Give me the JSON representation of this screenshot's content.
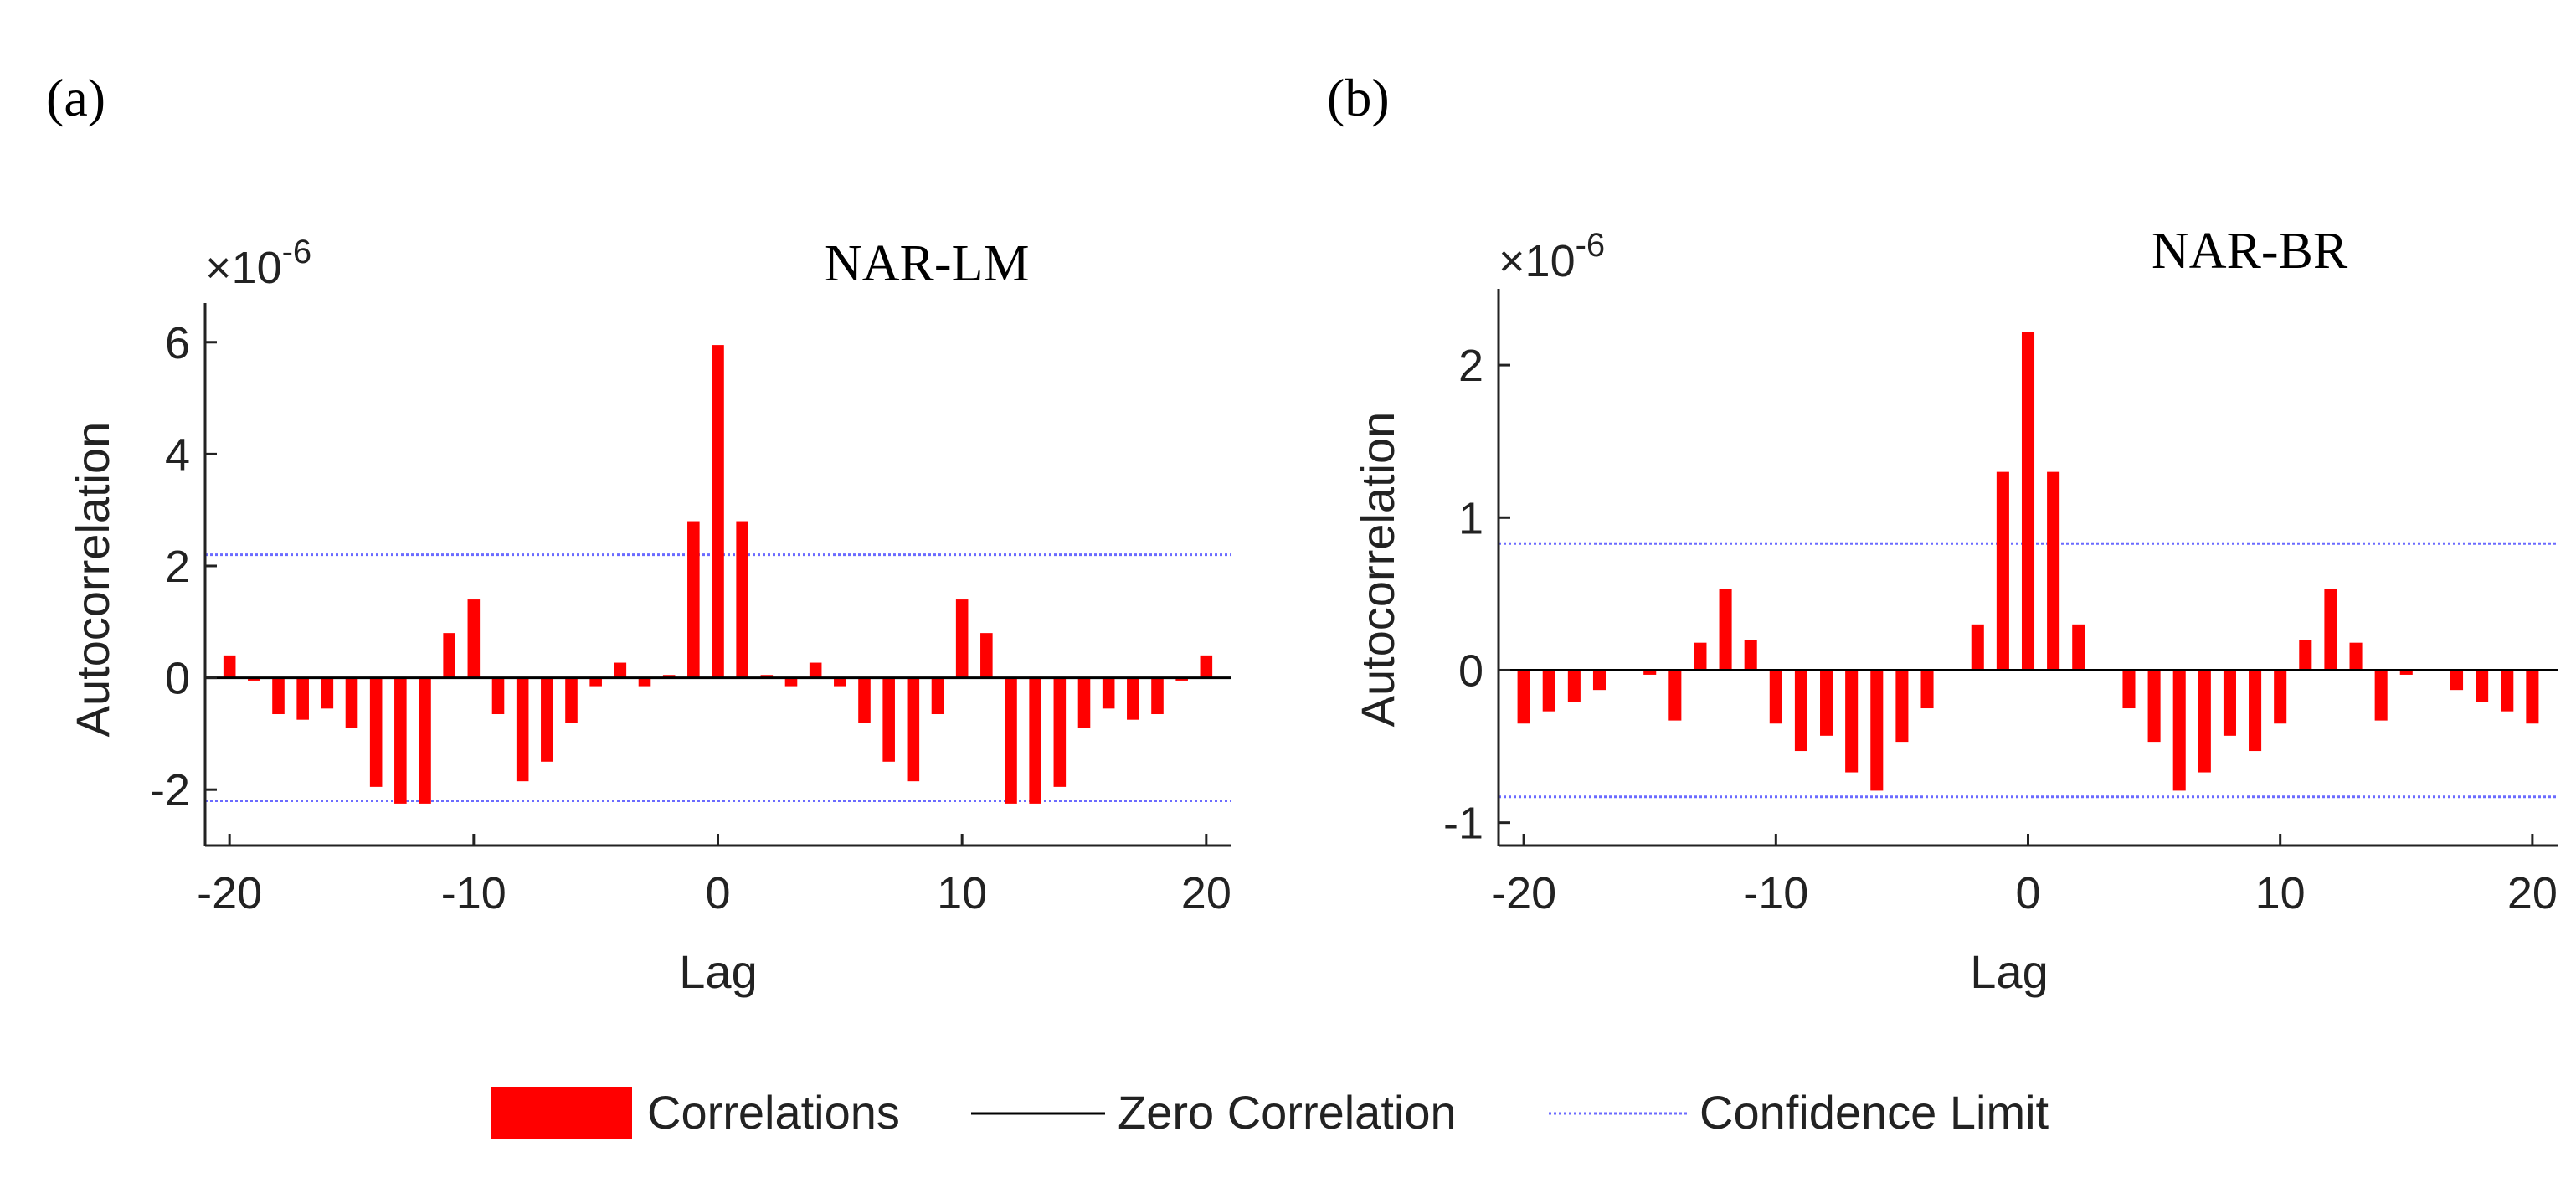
{
  "figure": {
    "legend": {
      "items": [
        {
          "label": "Correlations",
          "kind": "bar",
          "color": "#ff0000"
        },
        {
          "label": "Zero Correlation",
          "kind": "line",
          "color": "#000000"
        },
        {
          "label": "Confidence Limit",
          "kind": "dotted-line",
          "color": "#6b6bff"
        }
      ]
    }
  },
  "chart_data": [
    {
      "type": "bar",
      "panel": "(a)",
      "title": "NAR-LM",
      "xlabel": "Lag",
      "ylabel": "Autocorrelation",
      "exponent_base": "×10",
      "exponent": "-6",
      "xlim": [
        -21,
        21
      ],
      "ylim": [
        -3,
        6.7
      ],
      "xticks": [
        -20,
        -10,
        0,
        10,
        20
      ],
      "yticks": [
        -2,
        0,
        2,
        4,
        6
      ],
      "confidence_limit": 2.2,
      "x": [
        -20,
        -19,
        -18,
        -17,
        -16,
        -15,
        -14,
        -13,
        -12,
        -11,
        -10,
        -9,
        -8,
        -7,
        -6,
        -5,
        -4,
        -3,
        -2,
        -1,
        0,
        1,
        2,
        3,
        4,
        5,
        6,
        7,
        8,
        9,
        10,
        11,
        12,
        13,
        14,
        15,
        16,
        17,
        18,
        19,
        20
      ],
      "values": [
        0.4,
        -0.05,
        -0.65,
        -0.75,
        -0.55,
        -0.9,
        -1.95,
        -2.25,
        -2.25,
        0.8,
        1.4,
        -0.65,
        -1.85,
        -1.5,
        -0.8,
        -0.15,
        0.27,
        -0.15,
        0.05,
        2.8,
        5.95,
        2.8,
        0.05,
        -0.15,
        0.27,
        -0.15,
        -0.8,
        -1.5,
        -1.85,
        -0.65,
        1.4,
        0.8,
        -2.25,
        -2.25,
        -1.95,
        -0.9,
        -0.55,
        -0.75,
        -0.65,
        -0.05,
        0.4
      ]
    },
    {
      "type": "bar",
      "panel": "(b)",
      "title": "NAR-BR",
      "xlabel": "Lag",
      "ylabel": "Autocorrelation",
      "exponent_base": "×10",
      "exponent": "-6",
      "xlim": [
        -21,
        21
      ],
      "ylim": [
        -1.15,
        2.5
      ],
      "xticks": [
        -20,
        -10,
        0,
        10,
        20
      ],
      "yticks": [
        -1,
        0,
        1,
        2
      ],
      "confidence_limit": 0.83,
      "x": [
        -20,
        -19,
        -18,
        -17,
        -16,
        -15,
        -14,
        -13,
        -12,
        -11,
        -10,
        -9,
        -8,
        -7,
        -6,
        -5,
        -4,
        -3,
        -2,
        -1,
        0,
        1,
        2,
        3,
        4,
        5,
        6,
        7,
        8,
        9,
        10,
        11,
        12,
        13,
        14,
        15,
        16,
        17,
        18,
        19,
        20
      ],
      "values": [
        -0.35,
        -0.27,
        -0.21,
        -0.13,
        0.0,
        -0.03,
        -0.33,
        0.18,
        0.53,
        0.2,
        -0.35,
        -0.53,
        -0.43,
        -0.67,
        -0.79,
        -0.47,
        -0.25,
        0.0,
        0.3,
        1.3,
        2.22,
        1.3,
        0.3,
        0.0,
        -0.25,
        -0.47,
        -0.79,
        -0.67,
        -0.43,
        -0.53,
        -0.35,
        0.2,
        0.53,
        0.18,
        -0.33,
        -0.03,
        0.0,
        -0.13,
        -0.21,
        -0.27,
        -0.35
      ]
    }
  ]
}
